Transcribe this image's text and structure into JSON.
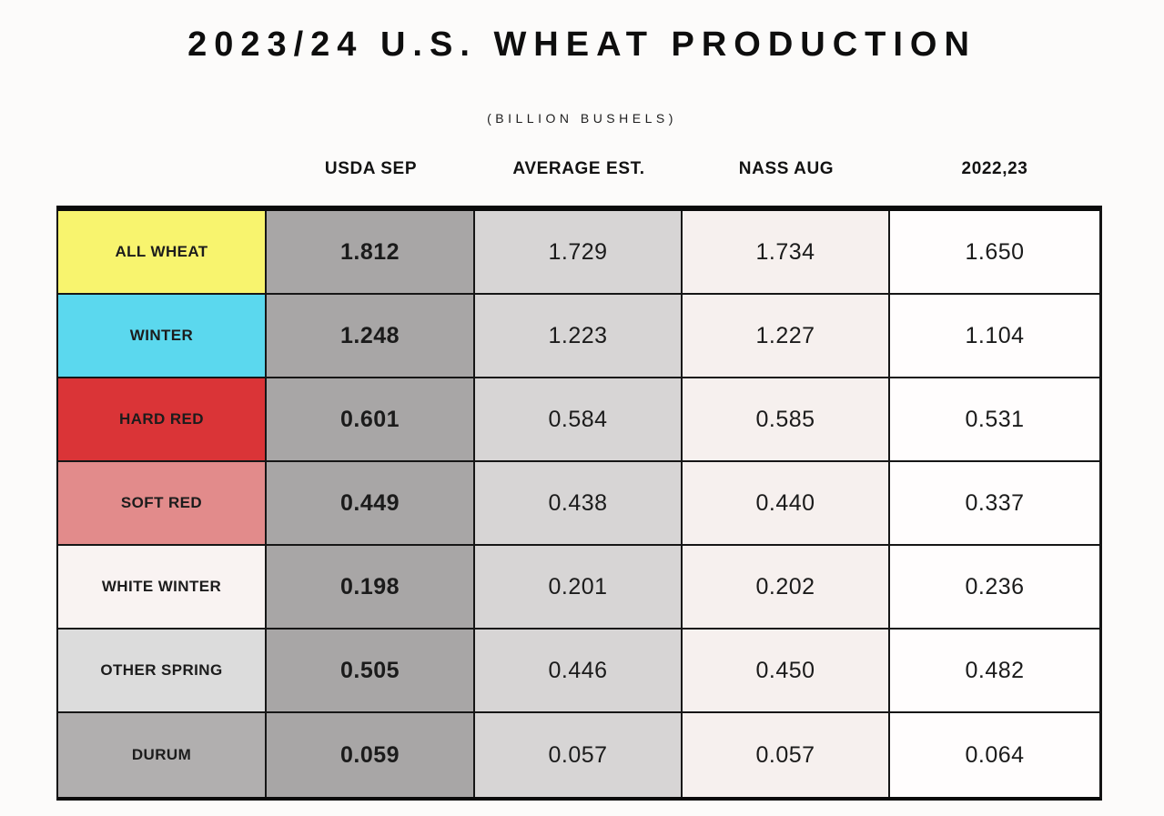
{
  "page": {
    "title": "2023/24 U.S. WHEAT PRODUCTION",
    "subtitle": "(BILLION BUSHELS)"
  },
  "table": {
    "columns": [
      "USDA SEP",
      "AVERAGE EST.",
      "NASS AUG",
      "2022,23"
    ],
    "column_colors": [
      "#a8a6a6",
      "#d7d5d5",
      "#f6f0ee",
      "#fffdfd"
    ],
    "border_color": "#141414",
    "rows": [
      {
        "label": "ALL WHEAT",
        "color": "#f8f46e",
        "values": [
          "1.812",
          "1.729",
          "1.734",
          "1.650"
        ]
      },
      {
        "label": "WINTER",
        "color": "#5bd8ee",
        "values": [
          "1.248",
          "1.223",
          "1.227",
          "1.104"
        ]
      },
      {
        "label": "HARD RED",
        "color": "#da3437",
        "values": [
          "0.601",
          "0.584",
          "0.585",
          "0.531"
        ]
      },
      {
        "label": "SOFT RED",
        "color": "#e28b8b",
        "values": [
          "0.449",
          "0.438",
          "0.440",
          "0.337"
        ]
      },
      {
        "label": "WHITE WINTER",
        "color": "#f9f3f2",
        "values": [
          "0.198",
          "0.201",
          "0.202",
          "0.236"
        ]
      },
      {
        "label": "OTHER SPRING",
        "color": "#dcdcdc",
        "values": [
          "0.505",
          "0.446",
          "0.450",
          "0.482"
        ]
      },
      {
        "label": "DURUM",
        "color": "#b1afaf",
        "values": [
          "0.059",
          "0.057",
          "0.057",
          "0.064"
        ]
      }
    ]
  },
  "chart_data": {
    "type": "table",
    "title": "2023/24 U.S. WHEAT PRODUCTION",
    "subtitle": "(BILLION BUSHELS)",
    "unit": "billion bushels",
    "categories": [
      "ALL WHEAT",
      "WINTER",
      "HARD RED",
      "SOFT RED",
      "WHITE WINTER",
      "OTHER SPRING",
      "DURUM"
    ],
    "series": [
      {
        "name": "USDA SEP",
        "values": [
          1.812,
          1.248,
          0.601,
          0.449,
          0.198,
          0.505,
          0.059
        ]
      },
      {
        "name": "AVERAGE EST.",
        "values": [
          1.729,
          1.223,
          0.584,
          0.438,
          0.201,
          0.446,
          0.057
        ]
      },
      {
        "name": "NASS AUG",
        "values": [
          1.734,
          1.227,
          0.585,
          0.44,
          0.202,
          0.45,
          0.057
        ]
      },
      {
        "name": "2022,23",
        "values": [
          1.65,
          1.104,
          0.531,
          0.337,
          0.236,
          0.482,
          0.064
        ]
      }
    ],
    "row_colors": [
      "#f8f46e",
      "#5bd8ee",
      "#da3437",
      "#e28b8b",
      "#f9f3f2",
      "#dcdcdc",
      "#b1afaf"
    ]
  }
}
